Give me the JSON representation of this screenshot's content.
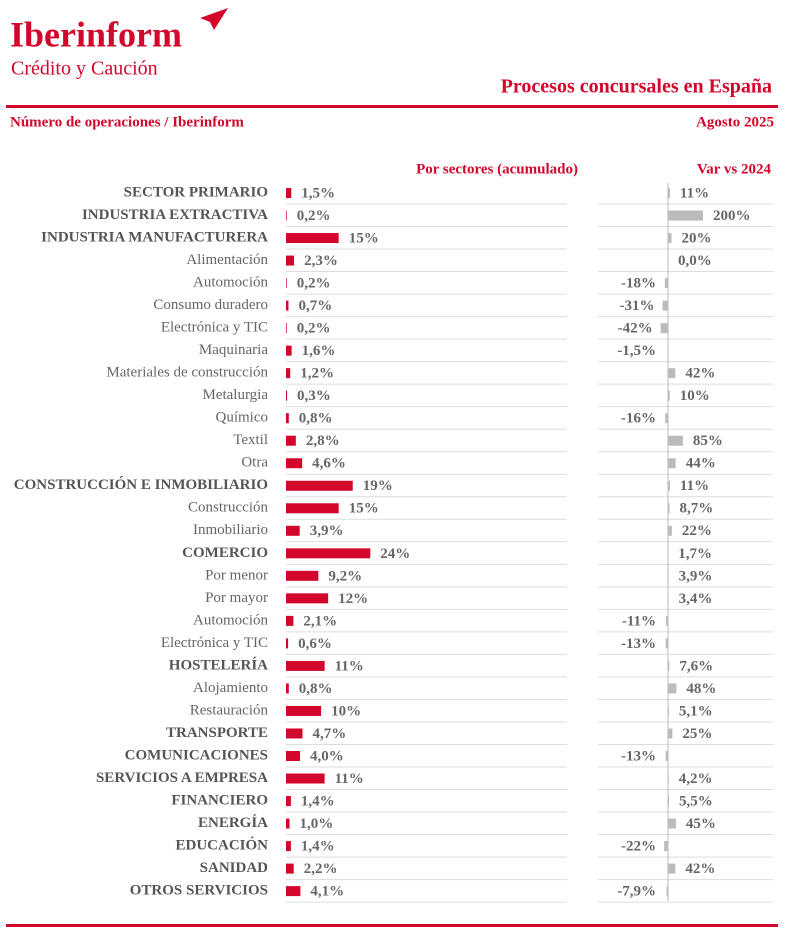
{
  "header": {
    "brand": "Iberinform",
    "brand_sub": "Crédito y Caución",
    "title": "Procesos concursales en España",
    "subtitle": "Número de operaciones / Iberinform",
    "date": "Agosto 2025"
  },
  "chart_data": [
    {
      "type": "hbar",
      "title": "Por sectores (acumulado)",
      "color": "#d2072b",
      "xlim": [
        0,
        80
      ],
      "categories": [
        "SECTOR PRIMARIO",
        "INDUSTRIA EXTRACTIVA",
        "INDUSTRIA MANUFACTURERA",
        "Alimentación",
        "Automoción",
        "Consumo duradero",
        "Electrónica y TIC",
        "Maquinaria",
        "Materiales de construcción",
        "Metalurgia",
        "Químico",
        "Textil",
        "Otra",
        "CONSTRUCCIÓN E INMOBILIARIO",
        "Construcción",
        "Inmobiliario",
        "COMERCIO",
        "Por menor",
        "Por mayor",
        "Automoción",
        "Electrónica y TIC",
        "HOSTELERÍA",
        "Alojamiento",
        "Restauración",
        "TRANSPORTE",
        "COMUNICACIONES",
        "SERVICIOS A EMPRESA",
        "FINANCIERO",
        "ENERGÍA",
        "EDUCACIÓN",
        "SANIDAD",
        "OTROS SERVICIOS"
      ],
      "values": [
        1.5,
        0.2,
        15,
        2.3,
        0.2,
        0.7,
        0.2,
        1.6,
        1.2,
        0.3,
        0.8,
        2.8,
        4.6,
        19,
        15,
        3.9,
        24,
        9.2,
        12,
        2.1,
        0.6,
        11,
        0.8,
        10,
        4.7,
        4.0,
        11,
        1.4,
        1.0,
        1.4,
        2.2,
        4.1
      ],
      "value_labels": [
        "1,5%",
        "0,2%",
        "15%",
        "2,3%",
        "0,2%",
        "0,7%",
        "0,2%",
        "1,6%",
        "1,2%",
        "0,3%",
        "0,8%",
        "2,8%",
        "4,6%",
        "19%",
        "15%",
        "3,9%",
        "24%",
        "9,2%",
        "12%",
        "2,1%",
        "0,6%",
        "11%",
        "0,8%",
        "10%",
        "4,7%",
        "4,0%",
        "11%",
        "1,4%",
        "1,0%",
        "1,4%",
        "2,2%",
        "4,1%"
      ]
    },
    {
      "type": "hbar",
      "title": "Var vs 2024",
      "color": "#bbbbbb",
      "xlim": [
        -400,
        600
      ],
      "values": [
        11,
        200,
        20,
        0.0,
        -18,
        -31,
        -42,
        -1.5,
        42,
        10,
        -16,
        85,
        44,
        11,
        8.7,
        22,
        1.7,
        3.9,
        3.4,
        -11,
        -13,
        7.6,
        48,
        5.1,
        25,
        -13,
        4.2,
        5.5,
        45,
        -22,
        42,
        -7.9
      ],
      "value_labels": [
        "11%",
        "200%",
        "20%",
        "0,0%",
        "-18%",
        "-31%",
        "-42%",
        "-1,5%",
        "42%",
        "10%",
        "-16%",
        "85%",
        "44%",
        "11%",
        "8,7%",
        "22%",
        "1,7%",
        "3,9%",
        "3,4%",
        "-11%",
        "-13%",
        "7,6%",
        "48%",
        "5,1%",
        "25%",
        "-13%",
        "4,2%",
        "5,5%",
        "45%",
        "-22%",
        "42%",
        "-7,9%"
      ]
    }
  ]
}
